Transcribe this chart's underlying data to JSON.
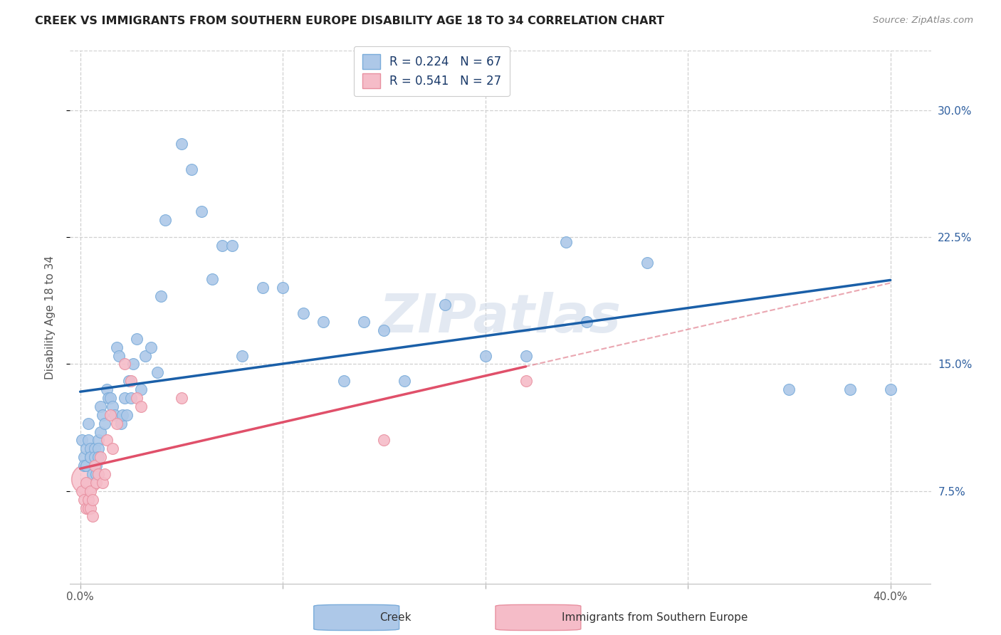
{
  "title": "CREEK VS IMMIGRANTS FROM SOUTHERN EUROPE DISABILITY AGE 18 TO 34 CORRELATION CHART",
  "source": "Source: ZipAtlas.com",
  "ylabel": "Disability Age 18 to 34",
  "ytick_labels": [
    "7.5%",
    "15.0%",
    "22.5%",
    "30.0%"
  ],
  "ytick_values": [
    0.075,
    0.15,
    0.225,
    0.3
  ],
  "xlim": [
    -0.005,
    0.42
  ],
  "ylim": [
    0.02,
    0.335
  ],
  "legend_creek": "Creek",
  "legend_imm": "Immigrants from Southern Europe",
  "r_creek": "0.224",
  "n_creek": "67",
  "r_imm": "0.541",
  "n_imm": "27",
  "watermark": "ZIPatlas",
  "creek_color": "#adc8e8",
  "creek_border": "#7aacda",
  "creek_line_color": "#1a5fa8",
  "imm_color": "#f5bcc8",
  "imm_border": "#e890a0",
  "imm_line_color": "#e0506a",
  "imm_dash_color": "#e07888",
  "creek_x": [
    0.001,
    0.002,
    0.002,
    0.003,
    0.003,
    0.004,
    0.004,
    0.005,
    0.005,
    0.005,
    0.006,
    0.007,
    0.007,
    0.008,
    0.008,
    0.009,
    0.009,
    0.009,
    0.01,
    0.01,
    0.011,
    0.012,
    0.013,
    0.014,
    0.015,
    0.016,
    0.017,
    0.018,
    0.019,
    0.02,
    0.021,
    0.022,
    0.023,
    0.024,
    0.025,
    0.026,
    0.028,
    0.03,
    0.032,
    0.035,
    0.038,
    0.04,
    0.042,
    0.05,
    0.055,
    0.06,
    0.065,
    0.07,
    0.075,
    0.08,
    0.09,
    0.1,
    0.11,
    0.12,
    0.13,
    0.14,
    0.15,
    0.16,
    0.18,
    0.2,
    0.22,
    0.24,
    0.25,
    0.28,
    0.35,
    0.38,
    0.4
  ],
  "creek_y": [
    0.105,
    0.095,
    0.09,
    0.09,
    0.1,
    0.115,
    0.105,
    0.095,
    0.1,
    0.095,
    0.085,
    0.1,
    0.095,
    0.09,
    0.085,
    0.105,
    0.1,
    0.095,
    0.11,
    0.125,
    0.12,
    0.115,
    0.135,
    0.13,
    0.13,
    0.125,
    0.12,
    0.16,
    0.155,
    0.115,
    0.12,
    0.13,
    0.12,
    0.14,
    0.13,
    0.15,
    0.165,
    0.135,
    0.155,
    0.16,
    0.145,
    0.19,
    0.235,
    0.28,
    0.265,
    0.24,
    0.2,
    0.22,
    0.22,
    0.155,
    0.195,
    0.195,
    0.18,
    0.175,
    0.14,
    0.175,
    0.17,
    0.14,
    0.185,
    0.155,
    0.155,
    0.222,
    0.175,
    0.21,
    0.135,
    0.135,
    0.135
  ],
  "imm_x": [
    0.001,
    0.002,
    0.003,
    0.003,
    0.004,
    0.004,
    0.005,
    0.005,
    0.006,
    0.006,
    0.007,
    0.008,
    0.009,
    0.01,
    0.011,
    0.012,
    0.013,
    0.015,
    0.016,
    0.018,
    0.022,
    0.025,
    0.028,
    0.03,
    0.05,
    0.15,
    0.22
  ],
  "imm_y": [
    0.075,
    0.07,
    0.065,
    0.08,
    0.065,
    0.07,
    0.075,
    0.065,
    0.06,
    0.07,
    0.09,
    0.08,
    0.085,
    0.095,
    0.08,
    0.085,
    0.105,
    0.12,
    0.1,
    0.115,
    0.15,
    0.14,
    0.13,
    0.125,
    0.13,
    0.105,
    0.14
  ]
}
